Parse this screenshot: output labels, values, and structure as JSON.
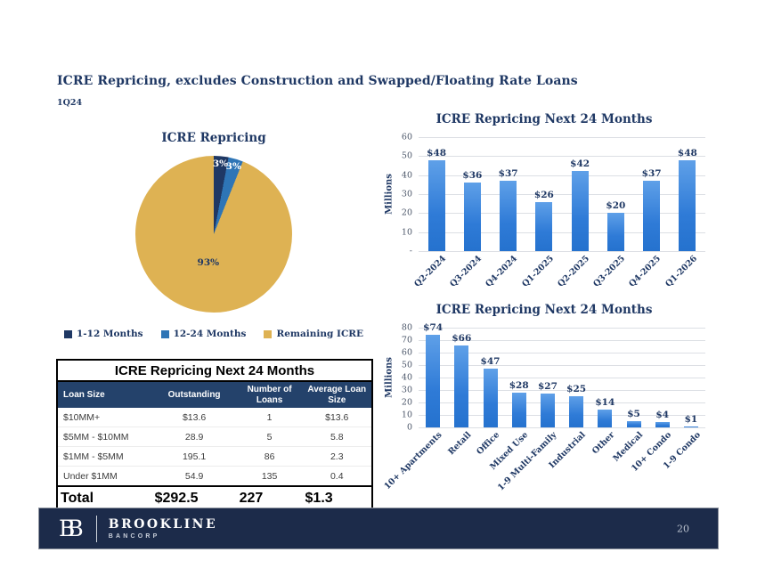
{
  "slide": {
    "title": "ICRE Repricing, excludes Construction and Swapped/Floating Rate Loans",
    "period": "1Q24"
  },
  "colors": {
    "navy": "#1F3864",
    "blue": "#2E75B6",
    "gold": "#DEB253",
    "bar_blue_light": "#5FA0E8",
    "bar_blue_mid": "#2F7BD7",
    "bar_blue": "#2572CE",
    "footer_bg": "#1C2B4A",
    "grid": "#DCDFE4"
  },
  "chart_data": [
    {
      "type": "pie",
      "title": "ICRE Repricing",
      "labels": [
        "1-12 Months",
        "12-24 Months",
        "Remaining ICRE"
      ],
      "values": [
        3,
        3,
        93
      ],
      "value_labels": [
        "3%",
        "3%",
        "93%"
      ],
      "colors": [
        "#1F3864",
        "#2E75B6",
        "#DEB253"
      ],
      "label_colors": [
        "#FFFFFF",
        "#FFFFFF",
        "#1F3864"
      ],
      "legend_position": "bottom"
    },
    {
      "type": "bar",
      "title": "ICRE Repricing Next 24 Months",
      "ylabel": "Millions",
      "ylim": [
        0,
        60
      ],
      "ytick_step": 10,
      "zero_tick_label": "-",
      "grid": true,
      "categories": [
        "Q2-2024",
        "Q3-2024",
        "Q4-2024",
        "Q1-2025",
        "Q2-2025",
        "Q3-2025",
        "Q4-2025",
        "Q1-2026"
      ],
      "values": [
        48,
        36,
        37,
        26,
        42,
        20,
        37,
        48
      ],
      "value_labels": [
        "$48",
        "$36",
        "$37",
        "$26",
        "$42",
        "$20",
        "$37",
        "$48"
      ]
    },
    {
      "type": "bar",
      "title": "ICRE Repricing Next 24 Months",
      "ylabel": "Millions",
      "ylim": [
        0,
        80
      ],
      "ytick_step": 10,
      "zero_tick_label": "0",
      "grid": true,
      "categories": [
        "10+ Apartments",
        "Retail",
        "Office",
        "Mixed Use",
        "1-9 Multi-Family",
        "Industrial",
        "Other",
        "Medical",
        "10+ Condo",
        "1-9 Condo"
      ],
      "values": [
        74,
        66,
        47,
        28,
        27,
        25,
        14,
        5,
        4,
        1
      ],
      "value_labels": [
        "$74",
        "$66",
        "$47",
        "$28",
        "$27",
        "$25",
        "$14",
        "$5",
        "$4",
        "$1"
      ]
    },
    {
      "type": "table",
      "title": "ICRE Repricing Next 24 Months",
      "columns": [
        "Loan Size",
        "Outstanding",
        "Number of Loans",
        "Average Loan Size"
      ],
      "rows": [
        [
          "$10MM+",
          "$13.6",
          "1",
          "$13.6"
        ],
        [
          "$5MM - $10MM",
          "28.9",
          "5",
          "5.8"
        ],
        [
          "$1MM - $5MM",
          "195.1",
          "86",
          "2.3"
        ],
        [
          "Under $1MM",
          "54.9",
          "135",
          "0.4"
        ]
      ],
      "total_row": [
        "Total",
        "$292.5",
        "227",
        "$1.3"
      ]
    }
  ],
  "footer": {
    "logo_monogram": "BB",
    "brand_name": "BROOKLINE",
    "brand_sub": "BANCORP",
    "page_number": "20"
  }
}
